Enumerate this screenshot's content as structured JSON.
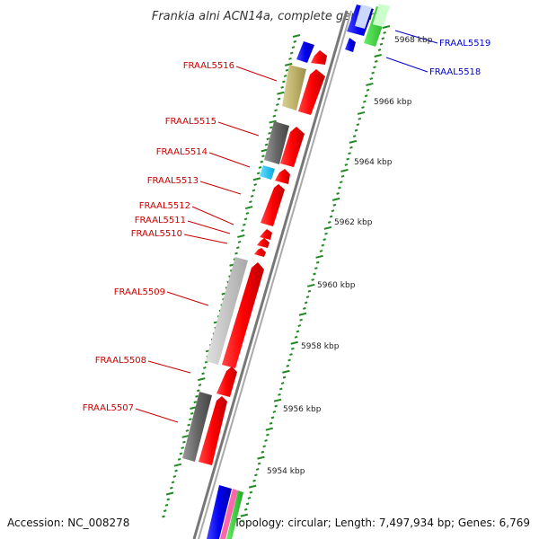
{
  "title": "Frankia alni ACN14a, complete genome",
  "footer": {
    "accession": "Accession: NC_008278",
    "topology": "Topology: circular; Length: 7,497,934 bp; Genes: 6,769"
  },
  "ticks": [
    "5968 kbp",
    "5966 kbp",
    "5964 kbp",
    "5962 kbp",
    "5960 kbp",
    "5958 kbp",
    "5956 kbp",
    "5954 kbp"
  ],
  "genes_left": [
    "FRAAL5516",
    "FRAAL5515",
    "FRAAL5514",
    "FRAAL5513",
    "FRAAL5512",
    "FRAAL5511",
    "FRAAL5510",
    "FRAAL5509",
    "FRAAL5508",
    "FRAAL5507"
  ],
  "genes_right": [
    "FRAAL5519",
    "FRAAL5518"
  ],
  "colors": {
    "forward_cds": "#ff0000",
    "reverse_cds": "#ff0000",
    "backbone": "#888888",
    "ticks": "#228822",
    "label_red": "#cc0000",
    "label_blue": "#0000cc"
  }
}
